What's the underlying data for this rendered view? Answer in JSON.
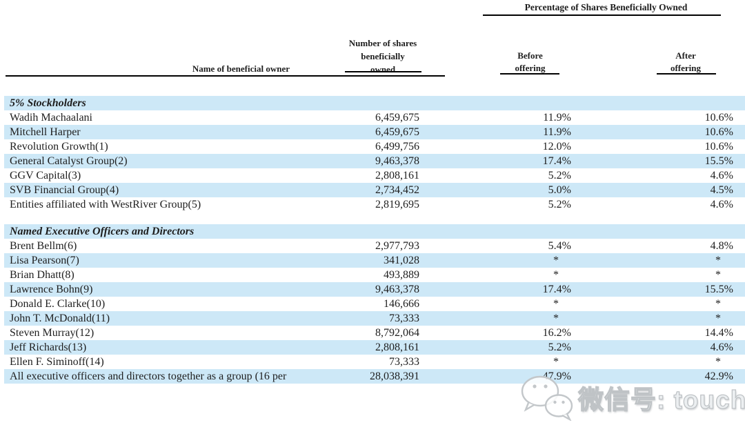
{
  "table": {
    "headers": {
      "group": "Percentage of Shares Beneficially Owned",
      "name": "Name of beneficial owner",
      "shares": "Number of shares\nbeneficially\nowned",
      "before": "Before\noffering",
      "after": "After\noffering"
    },
    "sections": [
      {
        "heading": "5% Stockholders",
        "rows": [
          {
            "name": "Wadih Machaalani",
            "shares": "6,459,675",
            "before": "11.9%",
            "after": "10.6%"
          },
          {
            "name": "Mitchell Harper",
            "shares": "6,459,675",
            "before": "11.9%",
            "after": "10.6%"
          },
          {
            "name": "Revolution Growth(1)",
            "shares": "6,499,756",
            "before": "12.0%",
            "after": "10.6%"
          },
          {
            "name": "General Catalyst Group(2)",
            "shares": "9,463,378",
            "before": "17.4%",
            "after": "15.5%"
          },
          {
            "name": "GGV Capital(3)",
            "shares": "2,808,161",
            "before": "5.2%",
            "after": "4.6%"
          },
          {
            "name": "SVB Financial Group(4)",
            "shares": "2,734,452",
            "before": "5.0%",
            "after": "4.5%"
          },
          {
            "name": "Entities affiliated with WestRiver Group(5)",
            "shares": "2,819,695",
            "before": "5.2%",
            "after": "4.6%"
          }
        ]
      },
      {
        "heading": "Named Executive Officers and Directors",
        "rows": [
          {
            "name": "Brent Bellm(6)",
            "shares": "2,977,793",
            "before": "5.4%",
            "after": "4.8%"
          },
          {
            "name": "Lisa Pearson(7)",
            "shares": "341,028",
            "before": "*",
            "after": "*"
          },
          {
            "name": "Brian Dhatt(8)",
            "shares": "493,889",
            "before": "*",
            "after": "*"
          },
          {
            "name": "Lawrence Bohn(9)",
            "shares": "9,463,378",
            "before": "17.4%",
            "after": "15.5%"
          },
          {
            "name": "Donald E. Clarke(10)",
            "shares": "146,666",
            "before": "*",
            "after": "*"
          },
          {
            "name": "John T. McDonald(11)",
            "shares": "73,333",
            "before": "*",
            "after": "*"
          },
          {
            "name": "Steven Murray(12)",
            "shares": "8,792,064",
            "before": "16.2%",
            "after": "14.4%"
          },
          {
            "name": "Jeff Richards(13)",
            "shares": "2,808,161",
            "before": "5.2%",
            "after": "4.6%"
          },
          {
            "name": "Ellen F. Siminoff(14)",
            "shares": "73,333",
            "before": "*",
            "after": "*"
          },
          {
            "name": "All executive officers and directors together as a group (16 per",
            "shares": "28,038,391",
            "before": "47.9%",
            "after": "42.9%"
          }
        ]
      }
    ]
  },
  "watermark": {
    "icon": "wechat-icon",
    "text": "微信号: touchweb"
  },
  "colors": {
    "row_stripe": "#cde8f7",
    "text": "#1e1e1e",
    "rule": "#000000",
    "watermark_gray": "#bfc3c6"
  }
}
